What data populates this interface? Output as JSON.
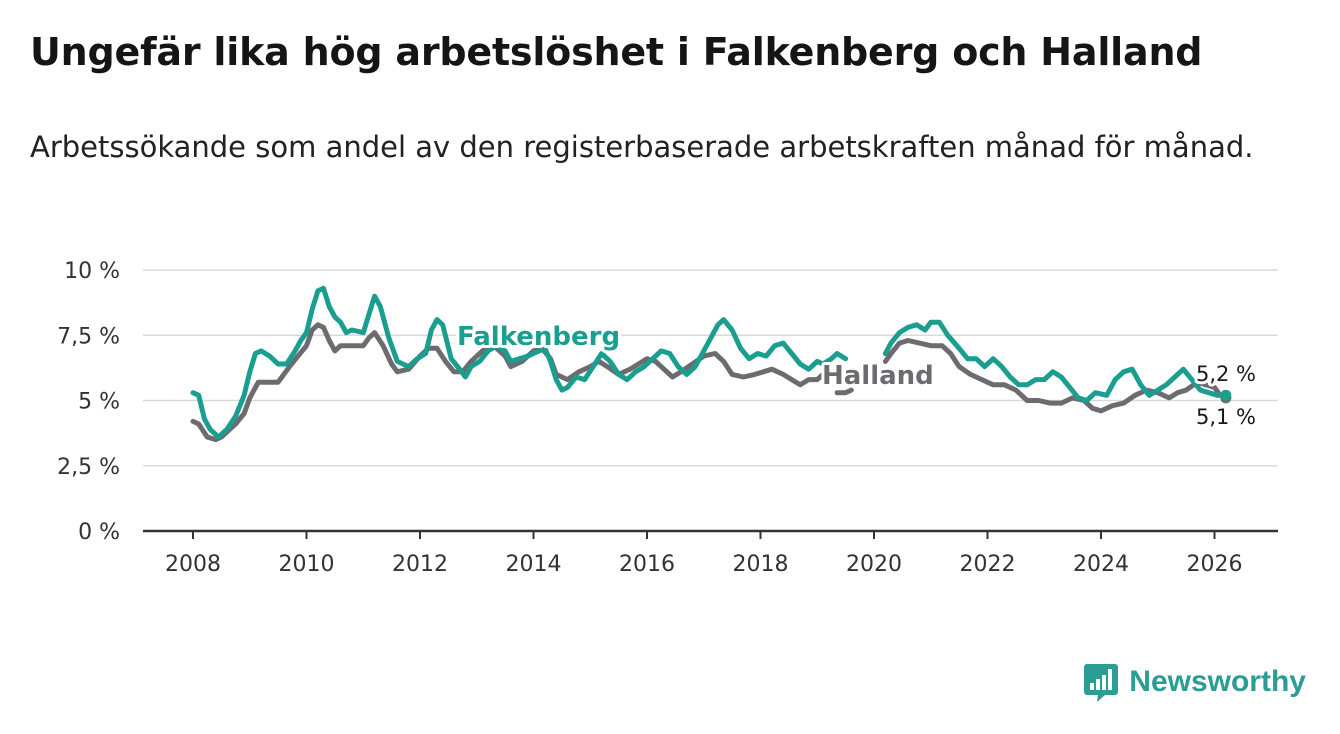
{
  "title": "Ungefär lika hög arbetslöshet i Falkenberg och Halland",
  "subtitle": "Arbetssökande som andel av den registerbaserade arbetskraften månad för månad.",
  "brand": {
    "name": "Newsworthy",
    "color": "#2b9d94",
    "icon": "bar-chart-icon"
  },
  "chart_data": {
    "type": "line",
    "y_unit": "%",
    "ylim": [
      0,
      10
    ],
    "xlim": [
      2007,
      2027
    ],
    "y_ticks": [
      {
        "value": 0,
        "label": "0 %"
      },
      {
        "value": 2.5,
        "label": "2,5 %"
      },
      {
        "value": 5,
        "label": "5 %"
      },
      {
        "value": 7.5,
        "label": "7,5 %"
      },
      {
        "value": 10,
        "label": "10 %"
      }
    ],
    "x_ticks": [
      {
        "value": 2008,
        "label": "2008"
      },
      {
        "value": 2010,
        "label": "2010"
      },
      {
        "value": 2012,
        "label": "2012"
      },
      {
        "value": 2014,
        "label": "2014"
      },
      {
        "value": 2016,
        "label": "2016"
      },
      {
        "value": 2018,
        "label": "2018"
      },
      {
        "value": 2020,
        "label": "2020"
      },
      {
        "value": 2022,
        "label": "2022"
      },
      {
        "value": 2024,
        "label": "2024"
      },
      {
        "value": 2026,
        "label": "2026"
      }
    ],
    "grid": true,
    "series": [
      {
        "name": "Halland",
        "color": "#6d6b6f",
        "label": "Halland",
        "end_label": "5,1 %",
        "points": [
          [
            2008.0,
            4.2
          ],
          [
            2008.1,
            4.1
          ],
          [
            2008.25,
            3.6
          ],
          [
            2008.4,
            3.5
          ],
          [
            2008.5,
            3.6
          ],
          [
            2008.6,
            3.8
          ],
          [
            2008.75,
            4.1
          ],
          [
            2008.9,
            4.5
          ],
          [
            2009.0,
            5.1
          ],
          [
            2009.15,
            5.7
          ],
          [
            2009.3,
            5.7
          ],
          [
            2009.5,
            5.7
          ],
          [
            2009.7,
            6.3
          ],
          [
            2009.85,
            6.7
          ],
          [
            2010.0,
            7.1
          ],
          [
            2010.1,
            7.7
          ],
          [
            2010.2,
            7.9
          ],
          [
            2010.3,
            7.8
          ],
          [
            2010.4,
            7.3
          ],
          [
            2010.5,
            6.9
          ],
          [
            2010.6,
            7.1
          ],
          [
            2010.8,
            7.1
          ],
          [
            2011.0,
            7.1
          ],
          [
            2011.1,
            7.4
          ],
          [
            2011.2,
            7.6
          ],
          [
            2011.35,
            7.1
          ],
          [
            2011.5,
            6.4
          ],
          [
            2011.6,
            6.1
          ],
          [
            2011.8,
            6.2
          ],
          [
            2012.0,
            6.7
          ],
          [
            2012.15,
            7.0
          ],
          [
            2012.3,
            7.0
          ],
          [
            2012.45,
            6.5
          ],
          [
            2012.6,
            6.1
          ],
          [
            2012.75,
            6.1
          ],
          [
            2012.9,
            6.5
          ],
          [
            2013.1,
            6.9
          ],
          [
            2013.3,
            7.1
          ],
          [
            2013.5,
            6.7
          ],
          [
            2013.6,
            6.3
          ],
          [
            2013.8,
            6.5
          ],
          [
            2014.0,
            6.9
          ],
          [
            2014.15,
            7.0
          ],
          [
            2014.3,
            6.6
          ],
          [
            2014.4,
            6.0
          ],
          [
            2014.6,
            5.8
          ],
          [
            2014.8,
            6.1
          ],
          [
            2015.0,
            6.3
          ],
          [
            2015.15,
            6.5
          ],
          [
            2015.3,
            6.3
          ],
          [
            2015.5,
            6.0
          ],
          [
            2015.7,
            6.2
          ],
          [
            2015.85,
            6.4
          ],
          [
            2016.0,
            6.6
          ],
          [
            2016.15,
            6.5
          ],
          [
            2016.3,
            6.2
          ],
          [
            2016.45,
            5.9
          ],
          [
            2016.6,
            6.1
          ],
          [
            2016.8,
            6.4
          ],
          [
            2017.0,
            6.7
          ],
          [
            2017.2,
            6.8
          ],
          [
            2017.35,
            6.5
          ],
          [
            2017.5,
            6.0
          ],
          [
            2017.7,
            5.9
          ],
          [
            2017.9,
            6.0
          ],
          [
            2018.05,
            6.1
          ],
          [
            2018.2,
            6.2
          ],
          [
            2018.4,
            6.0
          ],
          [
            2018.55,
            5.8
          ],
          [
            2018.7,
            5.6
          ],
          [
            2018.85,
            5.8
          ],
          [
            2019.0,
            5.8
          ],
          [
            2019.1,
            6.0
          ],
          null,
          [
            2019.35,
            5.3
          ],
          [
            2019.5,
            5.3
          ],
          [
            2019.6,
            5.4
          ],
          null,
          [
            2020.2,
            6.5
          ],
          [
            2020.3,
            6.8
          ],
          [
            2020.45,
            7.2
          ],
          [
            2020.6,
            7.3
          ],
          [
            2020.8,
            7.2
          ],
          [
            2021.0,
            7.1
          ],
          [
            2021.2,
            7.1
          ],
          [
            2021.35,
            6.8
          ],
          [
            2021.5,
            6.3
          ],
          [
            2021.7,
            6.0
          ],
          [
            2021.9,
            5.8
          ],
          [
            2022.1,
            5.6
          ],
          [
            2022.3,
            5.6
          ],
          [
            2022.5,
            5.4
          ],
          [
            2022.7,
            5.0
          ],
          [
            2022.9,
            5.0
          ],
          [
            2023.1,
            4.9
          ],
          [
            2023.3,
            4.9
          ],
          [
            2023.5,
            5.1
          ],
          [
            2023.7,
            5.0
          ],
          [
            2023.85,
            4.7
          ],
          [
            2024.0,
            4.6
          ],
          [
            2024.2,
            4.8
          ],
          [
            2024.4,
            4.9
          ],
          [
            2024.6,
            5.2
          ],
          [
            2024.8,
            5.4
          ],
          [
            2025.0,
            5.3
          ],
          [
            2025.2,
            5.1
          ],
          [
            2025.35,
            5.3
          ],
          [
            2025.5,
            5.4
          ],
          [
            2025.7,
            5.7
          ],
          [
            2025.85,
            5.6
          ],
          [
            2026.0,
            5.5
          ],
          [
            2026.1,
            5.2
          ],
          [
            2026.2,
            5.1
          ]
        ]
      },
      {
        "name": "Falkenberg",
        "color": "#1a9e8f",
        "label": "Falkenberg",
        "end_label": "5,2 %",
        "points": [
          [
            2008.0,
            5.3
          ],
          [
            2008.1,
            5.2
          ],
          [
            2008.2,
            4.3
          ],
          [
            2008.3,
            3.9
          ],
          [
            2008.45,
            3.6
          ],
          [
            2008.6,
            3.9
          ],
          [
            2008.75,
            4.4
          ],
          [
            2008.9,
            5.2
          ],
          [
            2009.0,
            6.1
          ],
          [
            2009.1,
            6.8
          ],
          [
            2009.2,
            6.9
          ],
          [
            2009.35,
            6.7
          ],
          [
            2009.5,
            6.4
          ],
          [
            2009.65,
            6.4
          ],
          [
            2009.8,
            6.9
          ],
          [
            2009.9,
            7.3
          ],
          [
            2010.0,
            7.6
          ],
          [
            2010.1,
            8.5
          ],
          [
            2010.2,
            9.2
          ],
          [
            2010.3,
            9.3
          ],
          [
            2010.4,
            8.6
          ],
          [
            2010.5,
            8.2
          ],
          [
            2010.6,
            8.0
          ],
          [
            2010.7,
            7.6
          ],
          [
            2010.8,
            7.7
          ],
          [
            2011.0,
            7.6
          ],
          [
            2011.1,
            8.3
          ],
          [
            2011.2,
            9.0
          ],
          [
            2011.3,
            8.6
          ],
          [
            2011.45,
            7.4
          ],
          [
            2011.6,
            6.5
          ],
          [
            2011.8,
            6.3
          ],
          [
            2011.95,
            6.6
          ],
          [
            2012.1,
            6.8
          ],
          [
            2012.2,
            7.7
          ],
          [
            2012.3,
            8.1
          ],
          [
            2012.4,
            7.9
          ],
          [
            2012.55,
            6.6
          ],
          [
            2012.7,
            6.2
          ],
          [
            2012.8,
            5.9
          ],
          [
            2012.9,
            6.3
          ],
          [
            2013.05,
            6.5
          ],
          [
            2013.2,
            6.9
          ],
          [
            2013.35,
            7.1
          ],
          [
            2013.5,
            6.9
          ],
          [
            2013.6,
            6.5
          ],
          [
            2013.75,
            6.6
          ],
          [
            2013.9,
            6.7
          ],
          [
            2014.1,
            6.9
          ],
          [
            2014.2,
            7.0
          ],
          [
            2014.3,
            6.5
          ],
          [
            2014.4,
            5.8
          ],
          [
            2014.5,
            5.4
          ],
          [
            2014.6,
            5.5
          ],
          [
            2014.75,
            5.9
          ],
          [
            2014.9,
            5.8
          ],
          [
            2015.05,
            6.3
          ],
          [
            2015.2,
            6.8
          ],
          [
            2015.35,
            6.5
          ],
          [
            2015.5,
            6.0
          ],
          [
            2015.65,
            5.8
          ],
          [
            2015.8,
            6.1
          ],
          [
            2015.95,
            6.3
          ],
          [
            2016.1,
            6.6
          ],
          [
            2016.25,
            6.9
          ],
          [
            2016.4,
            6.8
          ],
          [
            2016.55,
            6.3
          ],
          [
            2016.7,
            6.0
          ],
          [
            2016.85,
            6.3
          ],
          [
            2017.0,
            6.9
          ],
          [
            2017.1,
            7.3
          ],
          [
            2017.25,
            7.9
          ],
          [
            2017.35,
            8.1
          ],
          [
            2017.5,
            7.7
          ],
          [
            2017.65,
            7.0
          ],
          [
            2017.8,
            6.6
          ],
          [
            2017.95,
            6.8
          ],
          [
            2018.1,
            6.7
          ],
          [
            2018.25,
            7.1
          ],
          [
            2018.4,
            7.2
          ],
          [
            2018.55,
            6.8
          ],
          [
            2018.7,
            6.4
          ],
          [
            2018.85,
            6.2
          ],
          [
            2019.0,
            6.5
          ],
          [
            2019.1,
            6.4
          ],
          [
            2019.25,
            6.6
          ],
          [
            2019.35,
            6.8
          ],
          [
            2019.5,
            6.6
          ],
          null,
          [
            2020.2,
            6.8
          ],
          [
            2020.3,
            7.2
          ],
          [
            2020.45,
            7.6
          ],
          [
            2020.6,
            7.8
          ],
          [
            2020.75,
            7.9
          ],
          [
            2020.9,
            7.7
          ],
          [
            2021.0,
            8.0
          ],
          [
            2021.15,
            8.0
          ],
          [
            2021.3,
            7.5
          ],
          [
            2021.5,
            7.0
          ],
          [
            2021.65,
            6.6
          ],
          [
            2021.8,
            6.6
          ],
          [
            2021.95,
            6.3
          ],
          [
            2022.1,
            6.6
          ],
          [
            2022.25,
            6.3
          ],
          [
            2022.4,
            5.9
          ],
          [
            2022.55,
            5.6
          ],
          [
            2022.7,
            5.6
          ],
          [
            2022.85,
            5.8
          ],
          [
            2023.0,
            5.8
          ],
          [
            2023.15,
            6.1
          ],
          [
            2023.3,
            5.9
          ],
          [
            2023.45,
            5.5
          ],
          [
            2023.6,
            5.1
          ],
          [
            2023.75,
            5.0
          ],
          [
            2023.9,
            5.3
          ],
          [
            2024.1,
            5.2
          ],
          [
            2024.25,
            5.8
          ],
          [
            2024.4,
            6.1
          ],
          [
            2024.55,
            6.2
          ],
          [
            2024.7,
            5.6
          ],
          [
            2024.85,
            5.2
          ],
          [
            2025.0,
            5.4
          ],
          [
            2025.15,
            5.6
          ],
          [
            2025.3,
            5.9
          ],
          [
            2025.45,
            6.2
          ],
          [
            2025.6,
            5.8
          ],
          [
            2025.75,
            5.4
          ],
          [
            2025.9,
            5.3
          ],
          [
            2026.05,
            5.2
          ],
          [
            2026.2,
            5.2
          ]
        ]
      }
    ]
  }
}
